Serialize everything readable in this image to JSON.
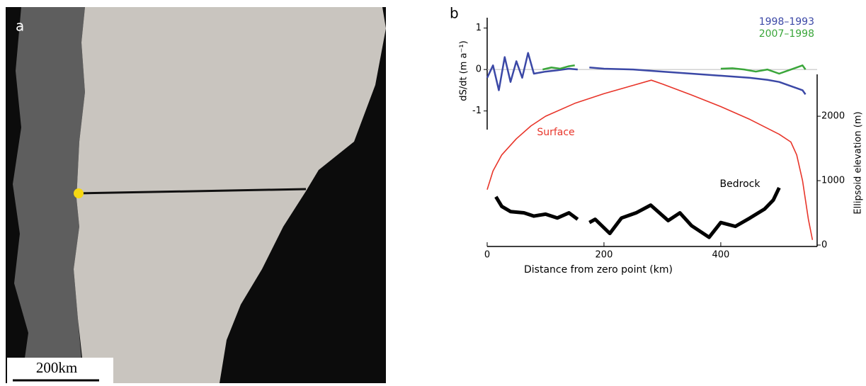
{
  "panel_a": {
    "label": "a",
    "scale_bar": "200km"
  },
  "chart_data": {
    "type": "line",
    "title": "b",
    "x_label": "Distance from zero point (km)",
    "y_label": "dS/dt (m a⁻¹)",
    "y2_label": "Ellipsoid elevation (m)",
    "xlim": [
      0,
      565
    ],
    "xticks": [
      0,
      200,
      400
    ],
    "ylim": [
      -1.45,
      1.25
    ],
    "yticks": [
      -1,
      0,
      1
    ],
    "y2lim": [
      0,
      2650
    ],
    "y2ticks": [
      0,
      1000,
      2000
    ],
    "zero_line": true,
    "legend": "upper right",
    "series": [
      {
        "name": "1998–1993",
        "color": "#3b48a6",
        "axis": "y",
        "x": [
          0,
          10,
          20,
          30,
          40,
          50,
          60,
          70,
          80,
          100,
          120,
          140,
          155,
          165,
          175,
          200,
          250,
          300,
          350,
          400,
          450,
          480,
          500,
          520,
          540,
          545
        ],
        "values": [
          -0.2,
          0.1,
          -0.5,
          0.3,
          -0.3,
          0.2,
          -0.2,
          0.4,
          -0.1,
          -0.05,
          -0.02,
          0.02,
          0.0,
          null,
          0.05,
          0.02,
          0.0,
          -0.05,
          -0.1,
          -0.15,
          -0.2,
          -0.25,
          -0.3,
          -0.4,
          -0.5,
          -0.6
        ]
      },
      {
        "name": "2007–1998",
        "color": "#3aa63a",
        "axis": "y",
        "x": [
          95,
          110,
          125,
          140,
          150,
          275,
          400,
          420,
          440,
          460,
          480,
          500,
          520,
          540,
          545
        ],
        "values": [
          0,
          0.05,
          0.02,
          0.08,
          0.1,
          null,
          0.02,
          0.03,
          0,
          -0.05,
          0.0,
          -0.1,
          0,
          0.1,
          0
        ]
      },
      {
        "name": "Surface",
        "color": "#e8352a",
        "axis": "y2",
        "x": [
          0,
          10,
          25,
          50,
          75,
          100,
          150,
          200,
          250,
          281,
          300,
          350,
          400,
          450,
          500,
          520,
          530,
          540,
          550,
          557
        ],
        "values": [
          860,
          1150,
          1400,
          1650,
          1850,
          2000,
          2200,
          2350,
          2480,
          2560,
          2500,
          2330,
          2150,
          1950,
          1720,
          1600,
          1400,
          1000,
          400,
          80
        ]
      },
      {
        "name": "Bedrock",
        "color": "#000000",
        "axis": "y2",
        "x": [
          15,
          25,
          40,
          63,
          80,
          100,
          120,
          140,
          155,
          165,
          175,
          185,
          210,
          230,
          255,
          280,
          310,
          330,
          350,
          380,
          400,
          425,
          450,
          475,
          490,
          500
        ],
        "values": [
          750,
          600,
          520,
          500,
          450,
          480,
          420,
          500,
          400,
          null,
          350,
          400,
          180,
          420,
          500,
          620,
          380,
          500,
          300,
          120,
          350,
          290,
          420,
          560,
          700,
          890
        ]
      }
    ]
  }
}
